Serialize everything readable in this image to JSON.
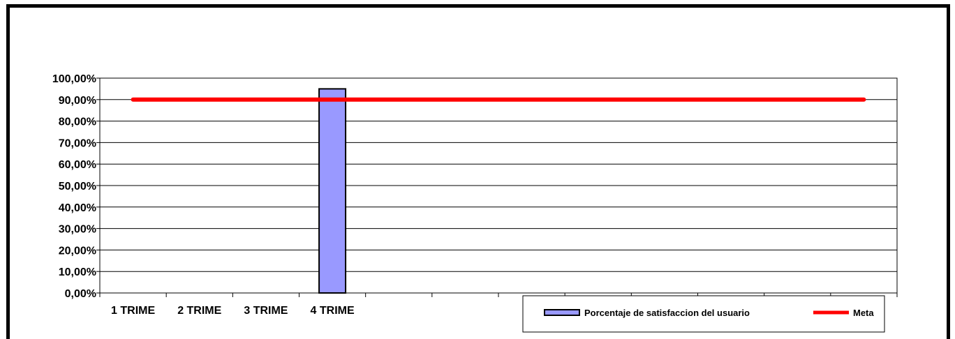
{
  "chart_data": {
    "type": "bar",
    "categories": [
      "1 TRIME",
      "2 TRIME",
      "3 TRIME",
      "4 TRIME",
      "",
      "",
      "",
      "",
      "",
      "",
      "",
      ""
    ],
    "series": [
      {
        "name": "Porcentaje de satisfaccion del usuario",
        "type": "bar",
        "values": [
          null,
          null,
          null,
          0.95,
          null,
          null,
          null,
          null,
          null,
          null,
          null,
          null
        ],
        "color": "#9999ff"
      },
      {
        "name": "Meta",
        "type": "line",
        "values": [
          0.9,
          0.9,
          0.9,
          0.9,
          0.9,
          0.9,
          0.9,
          0.9,
          0.9,
          0.9,
          0.9,
          0.9
        ],
        "color": "#ff0000"
      }
    ],
    "yticks": [
      "0,00%",
      "10,00%",
      "20,00%",
      "30,00%",
      "40,00%",
      "50,00%",
      "60,00%",
      "70,00%",
      "80,00%",
      "90,00%",
      "100,00%"
    ],
    "ylim": [
      0,
      1
    ],
    "grid": true,
    "legend_position": "bottom-right"
  }
}
